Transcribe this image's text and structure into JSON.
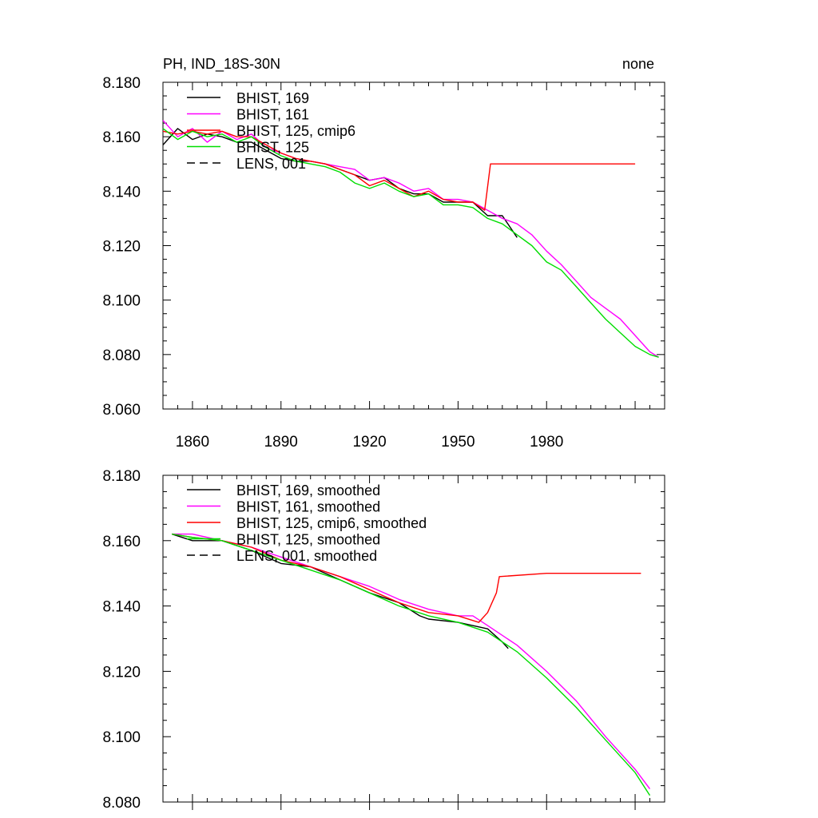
{
  "title_left": "PH, IND_18S-30N",
  "title_right": "none",
  "chart_data": [
    {
      "type": "line",
      "xlim": [
        1850,
        2020
      ],
      "ylim": [
        8.06,
        8.18
      ],
      "yticks": [
        "8.060",
        "8.080",
        "8.100",
        "8.120",
        "8.140",
        "8.160",
        "8.180"
      ],
      "xticks": [
        "1860",
        "1890",
        "1920",
        "1950",
        "1980"
      ],
      "legend": [
        "BHIST, 169",
        "BHIST, 161",
        "BHIST, 125, cmip6",
        "BHIST, 125",
        "LENS, 001"
      ],
      "legend_position": "top-left",
      "series": [
        {
          "name": "BHIST, 169",
          "color": "#000000",
          "x": [
            1850,
            1855,
            1860,
            1865,
            1870,
            1875,
            1880,
            1885,
            1890,
            1895,
            1900,
            1905,
            1910,
            1915,
            1920,
            1925,
            1930,
            1935,
            1940,
            1945,
            1950,
            1955,
            1960,
            1965,
            1970
          ],
          "y": [
            8.157,
            8.163,
            8.159,
            8.161,
            8.16,
            8.158,
            8.158,
            8.155,
            8.152,
            8.151,
            8.151,
            8.15,
            8.148,
            8.146,
            8.144,
            8.145,
            8.141,
            8.139,
            8.139,
            8.136,
            8.136,
            8.136,
            8.131,
            8.131,
            8.123
          ]
        },
        {
          "name": "BHIST, 161",
          "color": "#ff00ff",
          "x": [
            1850,
            1855,
            1860,
            1865,
            1870,
            1875,
            1880,
            1885,
            1890,
            1895,
            1900,
            1905,
            1910,
            1915,
            1920,
            1925,
            1930,
            1935,
            1940,
            1945,
            1950,
            1955,
            1960,
            1965,
            1970,
            1975,
            1980,
            1985,
            1990,
            1995,
            2000,
            2005,
            2010,
            2015,
            2018
          ],
          "y": [
            8.166,
            8.16,
            8.163,
            8.158,
            8.162,
            8.159,
            8.161,
            8.156,
            8.154,
            8.152,
            8.151,
            8.15,
            8.149,
            8.148,
            8.144,
            8.145,
            8.143,
            8.14,
            8.141,
            8.137,
            8.137,
            8.136,
            8.133,
            8.13,
            8.128,
            8.124,
            8.118,
            8.113,
            8.107,
            8.101,
            8.097,
            8.093,
            8.087,
            8.081,
            8.079
          ]
        },
        {
          "name": "BHIST, 125, cmip6",
          "color": "#ff0000",
          "x": [
            1850,
            1855,
            1860,
            1865,
            1870,
            1875,
            1880,
            1885,
            1890,
            1895,
            1900,
            1905,
            1910,
            1915,
            1920,
            1925,
            1930,
            1935,
            1940,
            1945,
            1950,
            1955,
            1959,
            1961,
            1980,
            2000,
            2010
          ],
          "y": [
            8.162,
            8.161,
            8.162,
            8.161,
            8.162,
            8.16,
            8.16,
            8.157,
            8.154,
            8.152,
            8.151,
            8.15,
            8.148,
            8.146,
            8.142,
            8.144,
            8.141,
            8.138,
            8.14,
            8.137,
            8.136,
            8.136,
            8.133,
            8.15,
            8.15,
            8.15,
            8.15
          ]
        },
        {
          "name": "BHIST, 125",
          "color": "#00dd00",
          "x": [
            1850,
            1855,
            1860,
            1865,
            1870,
            1875,
            1880,
            1885,
            1890,
            1895,
            1900,
            1905,
            1910,
            1915,
            1920,
            1925,
            1930,
            1935,
            1940,
            1945,
            1950,
            1955,
            1960,
            1965,
            1970,
            1975,
            1980,
            1985,
            1990,
            1995,
            2000,
            2005,
            2010,
            2015,
            2018
          ],
          "y": [
            8.163,
            8.159,
            8.162,
            8.16,
            8.161,
            8.158,
            8.16,
            8.156,
            8.153,
            8.151,
            8.15,
            8.149,
            8.147,
            8.143,
            8.141,
            8.143,
            8.14,
            8.138,
            8.139,
            8.135,
            8.135,
            8.134,
            8.13,
            8.128,
            8.124,
            8.12,
            8.114,
            8.111,
            8.105,
            8.099,
            8.093,
            8.088,
            8.083,
            8.08,
            8.079
          ]
        }
      ]
    },
    {
      "type": "line",
      "xlim": [
        1850,
        2020
      ],
      "ylim": [
        8.08,
        8.18
      ],
      "yticks": [
        "8.080",
        "8.100",
        "8.120",
        "8.140",
        "8.160",
        "8.180"
      ],
      "legend": [
        "BHIST, 169, smoothed",
        "BHIST, 161, smoothed",
        "BHIST, 125, cmip6, smoothed",
        "BHIST, 125, smoothed",
        "LENS, 001, smoothed"
      ],
      "legend_position": "top-left",
      "series": [
        {
          "name": "BHIST, 169, smoothed",
          "color": "#000000",
          "x": [
            1853,
            1860,
            1870,
            1880,
            1890,
            1900,
            1910,
            1920,
            1930,
            1937,
            1940,
            1950,
            1960,
            1965,
            1967
          ],
          "y": [
            8.162,
            8.16,
            8.16,
            8.157,
            8.153,
            8.152,
            8.148,
            8.144,
            8.141,
            8.137,
            8.136,
            8.135,
            8.133,
            8.129,
            8.127
          ]
        },
        {
          "name": "BHIST, 161, smoothed",
          "color": "#ff00ff",
          "x": [
            1853,
            1860,
            1870,
            1880,
            1890,
            1900,
            1910,
            1920,
            1930,
            1940,
            1950,
            1955,
            1960,
            1970,
            1980,
            1990,
            2000,
            2010,
            2015
          ],
          "y": [
            8.162,
            8.162,
            8.16,
            8.158,
            8.155,
            8.152,
            8.149,
            8.146,
            8.142,
            8.139,
            8.137,
            8.137,
            8.134,
            8.128,
            8.12,
            8.111,
            8.1,
            8.09,
            8.084
          ]
        },
        {
          "name": "BHIST, 125, cmip6, smoothed",
          "color": "#ff0000",
          "x": [
            1853,
            1860,
            1870,
            1880,
            1890,
            1900,
            1910,
            1920,
            1930,
            1940,
            1950,
            1957,
            1960,
            1963,
            1964,
            1980,
            1995,
            2012
          ],
          "y": [
            8.162,
            8.161,
            8.16,
            8.158,
            8.154,
            8.152,
            8.149,
            8.145,
            8.141,
            8.138,
            8.137,
            8.135,
            8.138,
            8.144,
            8.149,
            8.15,
            8.15,
            8.15
          ]
        },
        {
          "name": "BHIST, 125, smoothed",
          "color": "#00dd00",
          "x": [
            1853,
            1860,
            1870,
            1880,
            1890,
            1900,
            1910,
            1920,
            1930,
            1940,
            1950,
            1960,
            1970,
            1980,
            1990,
            2000,
            2010,
            2015
          ],
          "y": [
            8.162,
            8.161,
            8.16,
            8.157,
            8.154,
            8.151,
            8.148,
            8.144,
            8.14,
            8.137,
            8.135,
            8.132,
            8.126,
            8.118,
            8.109,
            8.099,
            8.089,
            8.082
          ]
        }
      ]
    }
  ]
}
